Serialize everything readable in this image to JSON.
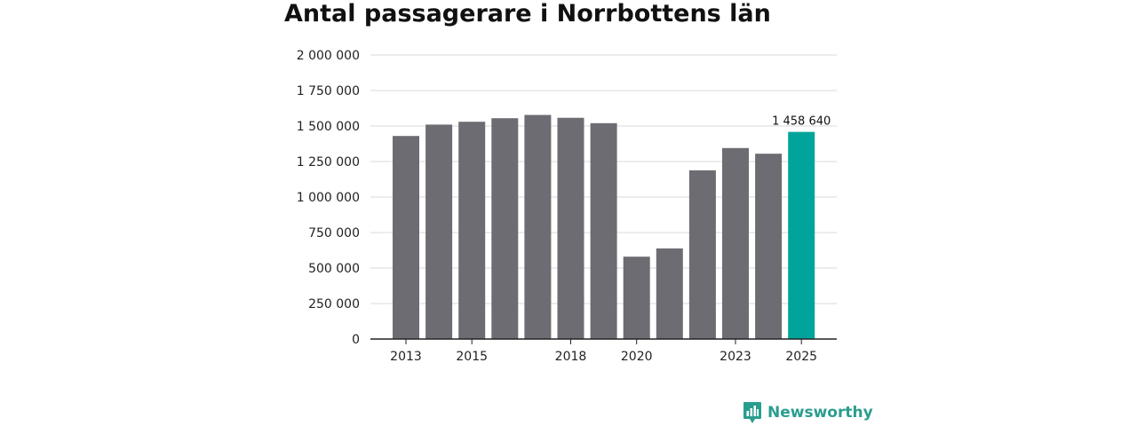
{
  "colors": {
    "bar": "#6d6c72",
    "highlight": "#00a49a",
    "grid": "#d9d9d9",
    "axis": "#222222",
    "brand": "#2a9d8f"
  },
  "brand": {
    "name": "Newsworthy",
    "icon": "bar-chart-badge-icon"
  },
  "chart_data": {
    "type": "bar",
    "title": "Antal passagerare i Norrbottens län",
    "xlabel": "",
    "ylabel": "",
    "ylim": [
      0,
      2000000
    ],
    "categories": [
      "2013",
      "2014",
      "2015",
      "2016",
      "2017",
      "2018",
      "2019",
      "2020",
      "2021",
      "2022",
      "2023",
      "2024",
      "2025"
    ],
    "values": [
      1430000,
      1510000,
      1530000,
      1555000,
      1578000,
      1558000,
      1520000,
      580000,
      638000,
      1188000,
      1345000,
      1305000,
      1458640
    ],
    "highlight_index": 12,
    "highlight_label": "1 458 640",
    "x_tick_labels": [
      "2013",
      "",
      "2015",
      "",
      "",
      "2018",
      "",
      "2020",
      "",
      "",
      "2023",
      "",
      "2025"
    ],
    "y_ticks": [
      0,
      250000,
      500000,
      750000,
      1000000,
      1250000,
      1500000,
      1750000,
      2000000
    ],
    "y_tick_labels": [
      "0",
      "250 000",
      "500 000",
      "750 000",
      "1 000 000",
      "1 250 000",
      "1 500 000",
      "1 750 000",
      "2 000 000"
    ],
    "grid": true,
    "legend": "none"
  }
}
